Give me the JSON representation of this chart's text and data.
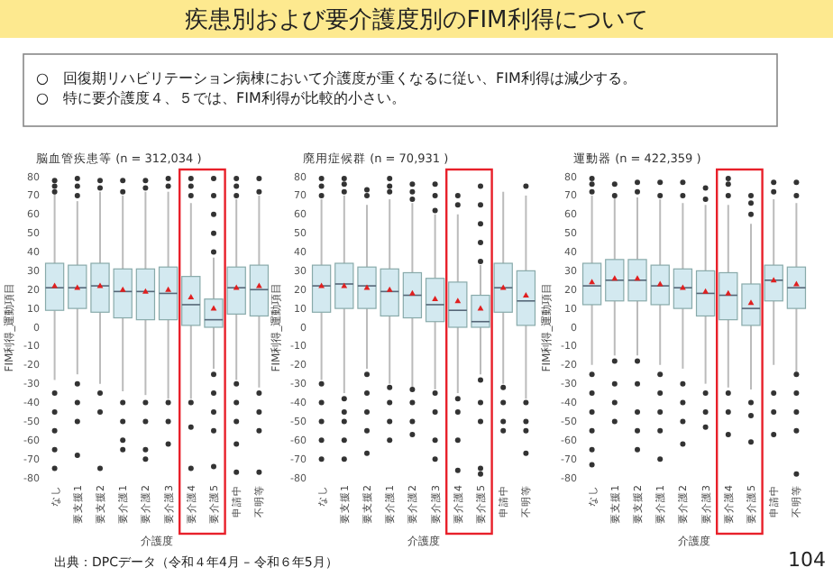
{
  "chart_data": [
    {
      "type": "other",
      "title": "疾患別および要介護度別のFIM利得について",
      "annotations": [
        "○　回復期リハビリテーション病棟において介護度が重くなるに従い、FIM利得は減少する。",
        "○　特に要介護度４、５では、FIM利得が比較的小さい。",
        "出典：DPCデータ（令和４年4月 – 令和６年5月）",
        "104"
      ]
    },
    {
      "type": "box",
      "title": "脳血管疾患等 (n = 312,034 )",
      "xlabel": "介護度",
      "ylabel": "FIM利得_運動項目",
      "color": "#d3e9f0",
      "ylim": [
        -80,
        80
      ],
      "yticks": [
        -80,
        -70,
        -60,
        -50,
        -40,
        -30,
        -20,
        -10,
        0,
        10,
        20,
        30,
        40,
        50,
        60,
        70,
        80
      ],
      "categories": [
        "なし",
        "要支援1",
        "要支援2",
        "要介護1",
        "要介護2",
        "要介護3",
        "要介護4",
        "要介護5",
        "申請中",
        "不明等"
      ],
      "boxes": [
        {
          "low": -28,
          "q1": 9,
          "median": 21,
          "q3": 34,
          "high": 71,
          "mean": 22,
          "outliers": [
            -35,
            -45,
            -55,
            -65,
            -75,
            72,
            75,
            78
          ]
        },
        {
          "low": -25,
          "q1": 10,
          "median": 21,
          "q3": 33,
          "high": 67,
          "mean": 21,
          "outliers": [
            -30,
            -40,
            -50,
            -68,
            70,
            75,
            79
          ]
        },
        {
          "low": -30,
          "q1": 8,
          "median": 22,
          "q3": 34,
          "high": 72,
          "mean": 22,
          "outliers": [
            -35,
            -45,
            -75,
            74,
            78
          ]
        },
        {
          "low": -34,
          "q1": 5,
          "median": 19,
          "q3": 31,
          "high": 70,
          "mean": 20,
          "outliers": [
            -40,
            -50,
            -60,
            -65,
            72,
            78
          ]
        },
        {
          "low": -36,
          "q1": 4,
          "median": 19,
          "q3": 31,
          "high": 72,
          "mean": 19,
          "outliers": [
            -40,
            -50,
            -65,
            -70,
            74,
            78
          ]
        },
        {
          "low": -38,
          "q1": 4,
          "median": 18,
          "q3": 32,
          "high": 72,
          "mean": 20,
          "outliers": [
            -40,
            -50,
            -62,
            75,
            79
          ]
        },
        {
          "low": -38,
          "q1": 1,
          "median": 12,
          "q3": 27,
          "high": 66,
          "mean": 16,
          "outliers": [
            -40,
            -53,
            -75,
            70,
            75,
            79
          ]
        },
        {
          "low": -22,
          "q1": 0,
          "median": 4,
          "q3": 15,
          "high": 37,
          "mean": 10,
          "outliers": [
            -25,
            -35,
            -45,
            -55,
            -74,
            40,
            50,
            60,
            70,
            79
          ]
        },
        {
          "low": -28,
          "q1": 7,
          "median": 21,
          "q3": 32,
          "high": 68,
          "mean": 21,
          "outliers": [
            -30,
            -40,
            -50,
            -62,
            -77,
            70,
            75,
            79
          ]
        },
        {
          "low": -32,
          "q1": 6,
          "median": 20,
          "q3": 33,
          "high": 70,
          "mean": 22,
          "outliers": [
            -35,
            -45,
            -55,
            -77,
            72,
            79
          ]
        }
      ]
    },
    {
      "type": "box",
      "title": "廃用症候群 (n = 70,931 )",
      "xlabel": "介護度",
      "ylabel": "FIM利得_運動項目",
      "color": "#d3e9f0",
      "ylim": [
        -80,
        80
      ],
      "yticks": [
        -80,
        -70,
        -60,
        -50,
        -40,
        -30,
        -20,
        -10,
        0,
        10,
        20,
        30,
        40,
        50,
        60,
        70,
        80
      ],
      "categories": [
        "なし",
        "要支援1",
        "要支援2",
        "要介護1",
        "要介護2",
        "要介護3",
        "要介護4",
        "要介護5",
        "申請中",
        "不明等"
      ],
      "boxes": [
        {
          "low": -28,
          "q1": 8,
          "median": 22,
          "q3": 33,
          "high": 68,
          "mean": 22,
          "outliers": [
            -30,
            -40,
            -50,
            -60,
            -70,
            70,
            75,
            79
          ]
        },
        {
          "low": -35,
          "q1": 10,
          "median": 23,
          "q3": 34,
          "high": 70,
          "mean": 22,
          "outliers": [
            -38,
            -45,
            -50,
            -60,
            -70,
            72,
            76,
            79
          ]
        },
        {
          "low": -22,
          "q1": 10,
          "median": 22,
          "q3": 32,
          "high": 65,
          "mean": 21,
          "outliers": [
            -25,
            -35,
            -45,
            -55,
            -67,
            70,
            73
          ]
        },
        {
          "low": -30,
          "q1": 6,
          "median": 19,
          "q3": 31,
          "high": 68,
          "mean": 20,
          "outliers": [
            -32,
            -40,
            -50,
            -60,
            72,
            75,
            79
          ]
        },
        {
          "low": -32,
          "q1": 5,
          "median": 17,
          "q3": 29,
          "high": 66,
          "mean": 18,
          "outliers": [
            -33,
            -40,
            -50,
            -57,
            68,
            72,
            76
          ]
        },
        {
          "low": -33,
          "q1": 3,
          "median": 12,
          "q3": 26,
          "high": 60,
          "mean": 15,
          "outliers": [
            -35,
            -45,
            -60,
            -70,
            62,
            70,
            76
          ]
        },
        {
          "low": -35,
          "q1": 0,
          "median": 9,
          "q3": 24,
          "high": 60,
          "mean": 14,
          "outliers": [
            -38,
            -45,
            -60,
            -76,
            65,
            70
          ]
        },
        {
          "low": -25,
          "q1": 0,
          "median": 3,
          "q3": 17,
          "high": 33,
          "mean": 10,
          "outliers": [
            -28,
            -40,
            -50,
            -75,
            -78,
            35,
            45,
            55,
            65,
            75
          ]
        },
        {
          "low": -30,
          "q1": 8,
          "median": 21,
          "q3": 34,
          "high": 72,
          "mean": 21,
          "outliers": [
            -32,
            -40,
            -50,
            -55
          ]
        },
        {
          "low": -38,
          "q1": 1,
          "median": 14,
          "q3": 30,
          "high": 70,
          "mean": 17,
          "outliers": [
            -40,
            -50,
            -55,
            -67,
            75
          ]
        }
      ]
    },
    {
      "type": "box",
      "title": "運動器 (n = 422,359 )",
      "xlabel": "介護度",
      "ylabel": "FIM利得_運動項目",
      "color": "#d3e9f0",
      "ylim": [
        -80,
        80
      ],
      "yticks": [
        -80,
        -70,
        -60,
        -50,
        -40,
        -30,
        -20,
        -10,
        0,
        10,
        20,
        30,
        40,
        50,
        60,
        70,
        80
      ],
      "categories": [
        "なし",
        "要支援1",
        "要支援2",
        "要介護1",
        "要介護2",
        "要介護3",
        "要介護4",
        "要介護5",
        "申請中",
        "不明等"
      ],
      "boxes": [
        {
          "low": -20,
          "q1": 12,
          "median": 22,
          "q3": 34,
          "high": 70,
          "mean": 24,
          "outliers": [
            -25,
            -35,
            -45,
            -55,
            -65,
            -73,
            72,
            76,
            79
          ]
        },
        {
          "low": -15,
          "q1": 14,
          "median": 25,
          "q3": 36,
          "high": 69,
          "mean": 26,
          "outliers": [
            -18,
            -30,
            -40,
            -50,
            70,
            76
          ]
        },
        {
          "low": -15,
          "q1": 14,
          "median": 25,
          "q3": 36,
          "high": 69,
          "mean": 26,
          "outliers": [
            -18,
            -30,
            -45,
            -55,
            -65,
            72,
            77
          ]
        },
        {
          "low": -20,
          "q1": 12,
          "median": 22,
          "q3": 33,
          "high": 68,
          "mean": 23,
          "outliers": [
            -25,
            -35,
            -45,
            -55,
            -70,
            70,
            77
          ]
        },
        {
          "low": -22,
          "q1": 10,
          "median": 21,
          "q3": 31,
          "high": 66,
          "mean": 21,
          "outliers": [
            -30,
            -40,
            -50,
            -62,
            70,
            77
          ]
        },
        {
          "low": -30,
          "q1": 6,
          "median": 18,
          "q3": 30,
          "high": 65,
          "mean": 19,
          "outliers": [
            -35,
            -45,
            -53,
            68,
            74
          ]
        },
        {
          "low": -32,
          "q1": 4,
          "median": 17,
          "q3": 29,
          "high": 65,
          "mean": 18,
          "outliers": [
            -35,
            -45,
            -57,
            70,
            76,
            79
          ]
        },
        {
          "low": -33,
          "q1": 1,
          "median": 10,
          "q3": 23,
          "high": 55,
          "mean": 13,
          "outliers": [
            -40,
            -47,
            -61,
            60,
            66,
            70
          ]
        },
        {
          "low": -20,
          "q1": 14,
          "median": 25,
          "q3": 33,
          "high": 68,
          "mean": 25,
          "outliers": [
            -35,
            -45,
            -57,
            72,
            77
          ]
        },
        {
          "low": -24,
          "q1": 10,
          "median": 21,
          "q3": 32,
          "high": 66,
          "mean": 23,
          "outliers": [
            -25,
            -35,
            -45,
            -55,
            -78,
            70,
            77
          ]
        }
      ]
    }
  ]
}
